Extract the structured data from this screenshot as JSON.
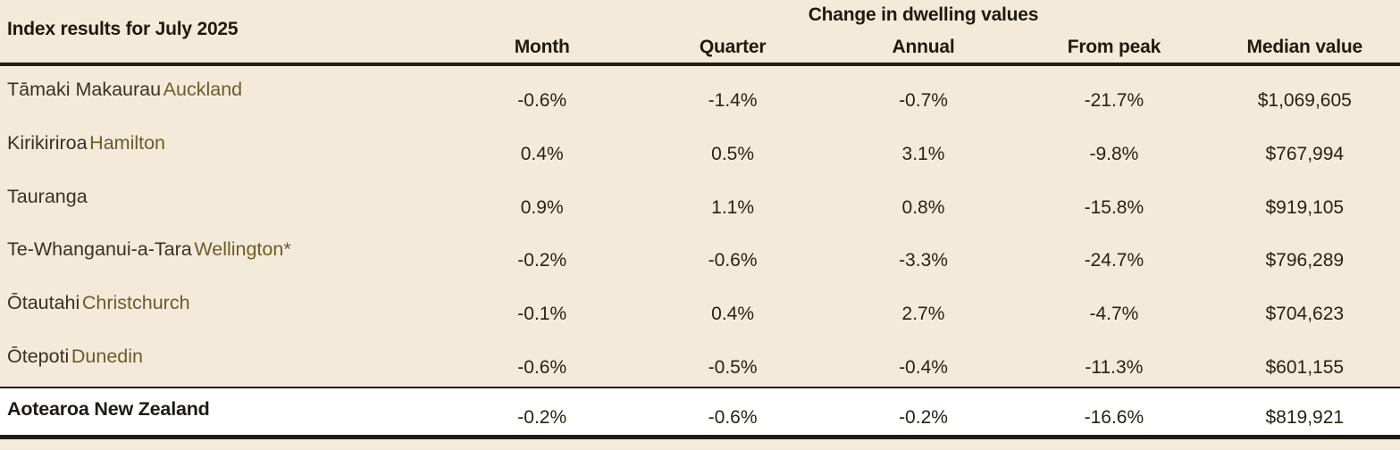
{
  "chart_data": {
    "type": "table",
    "title": "Index results for July 2025",
    "group_header": "Change in dwelling values",
    "columns": [
      "Month",
      "Quarter",
      "Annual",
      "From peak",
      "Median value"
    ],
    "rows": [
      {
        "maori": "Tāmaki Makaurau",
        "english": "Auckland",
        "values": [
          "-0.6%",
          "-1.4%",
          "-0.7%",
          "-21.7%",
          "$1,069,605"
        ]
      },
      {
        "maori": "Kirikiriroa",
        "english": "Hamilton",
        "values": [
          "0.4%",
          "0.5%",
          "3.1%",
          "-9.8%",
          "$767,994"
        ]
      },
      {
        "maori": "Tauranga",
        "english": "",
        "values": [
          "0.9%",
          "1.1%",
          "0.8%",
          "-15.8%",
          "$919,105"
        ]
      },
      {
        "maori": "Te-Whanganui-a-Tara",
        "english": "Wellington*",
        "values": [
          "-0.2%",
          "-0.6%",
          "-3.3%",
          "-24.7%",
          "$796,289"
        ]
      },
      {
        "maori": "Ōtautahi",
        "english": "Christchurch",
        "values": [
          "-0.1%",
          "0.4%",
          "2.7%",
          "-4.7%",
          "$704,623"
        ]
      },
      {
        "maori": "Ōtepoti",
        "english": "Dunedin",
        "values": [
          "-0.6%",
          "-0.5%",
          "-0.4%",
          "-11.3%",
          "$601,155"
        ]
      }
    ],
    "total": {
      "label": "Aotearoa New Zealand",
      "values": [
        "-0.2%",
        "-0.6%",
        "-0.2%",
        "-16.6%",
        "$819,921"
      ]
    }
  },
  "colors": {
    "background": "#f3ead9",
    "rule": "#241c10",
    "maori_name": "#3a311f",
    "english_name": "#6d5c2b",
    "number_text": "#292213",
    "total_row_background": "#ffffff"
  }
}
